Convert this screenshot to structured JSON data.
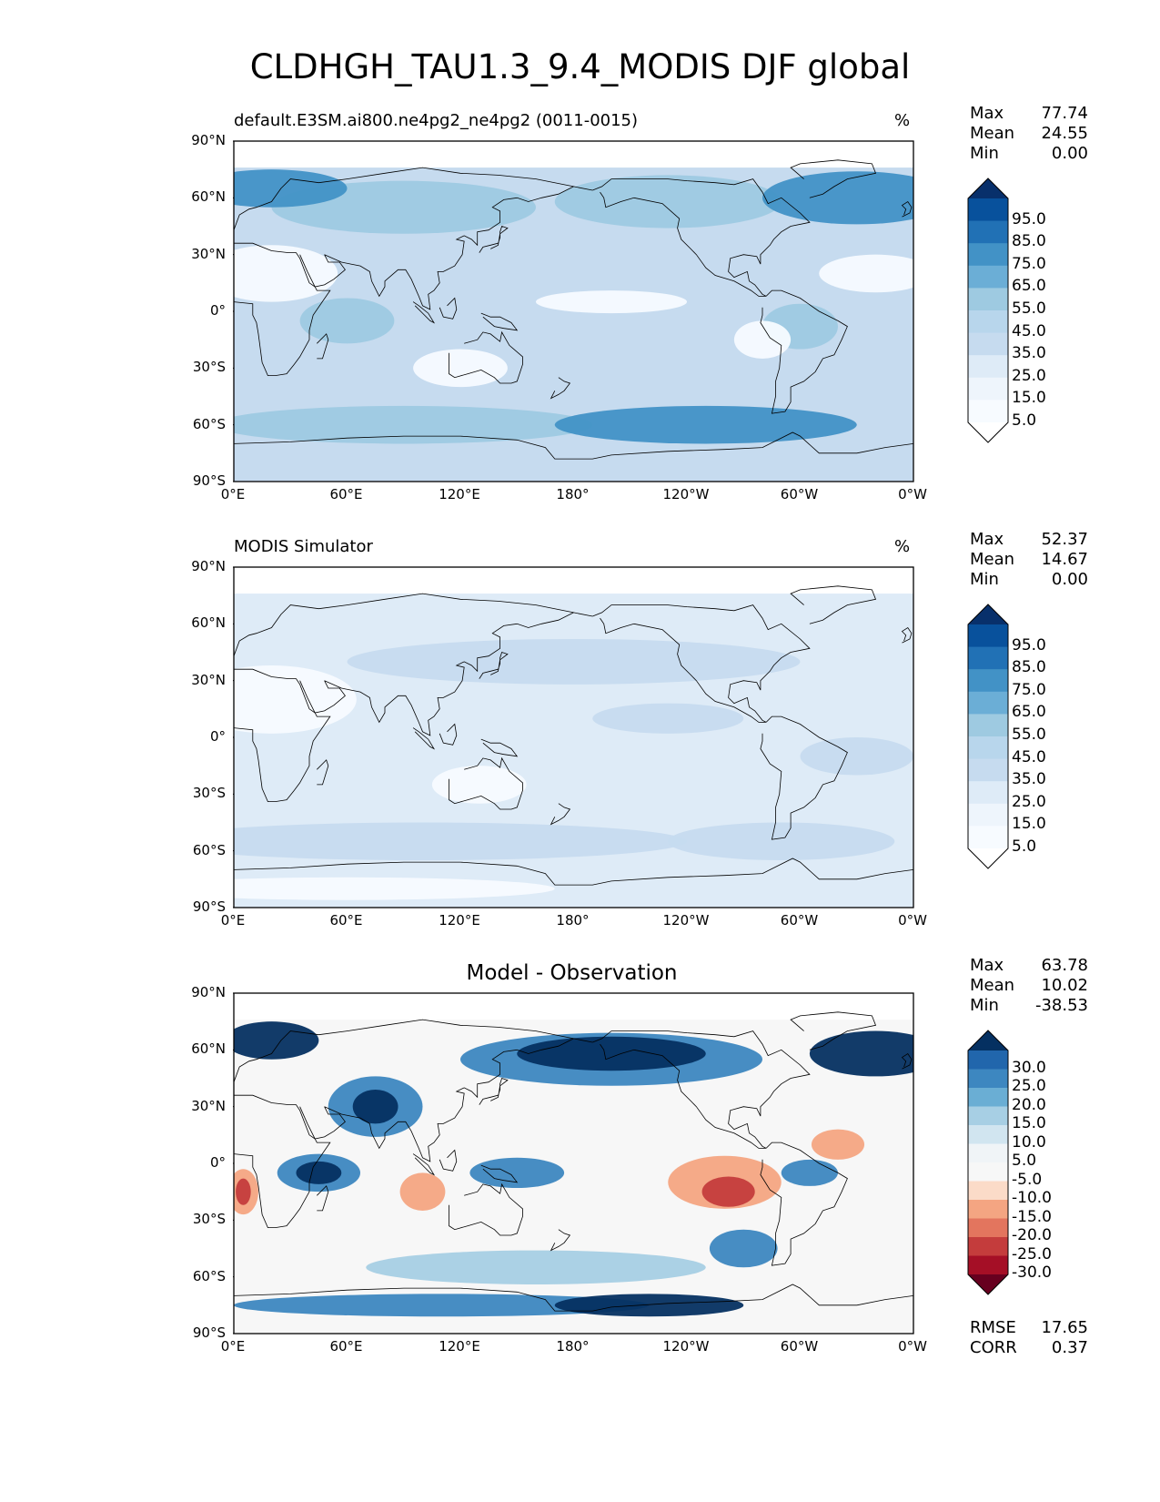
{
  "figure": {
    "title": "CLDHGH_TAU1.3_9.4_MODIS DJF global"
  },
  "axes": {
    "y_ticks": [
      "90°N",
      "60°N",
      "30°N",
      "0°",
      "30°S",
      "60°S",
      "90°S"
    ],
    "x_ticks": [
      "0°E",
      "60°E",
      "120°E",
      "180°",
      "120°W",
      "60°W",
      "0°W"
    ]
  },
  "panels": [
    {
      "left_title": "default.E3SM.ai800.ne4pg2_ne4pg2 (0011-0015)",
      "center_title": "",
      "unit": "%",
      "stats": [
        {
          "label": "Max",
          "value": "77.74"
        },
        {
          "label": "Mean",
          "value": "24.55"
        },
        {
          "label": "Min",
          "value": "0.00"
        }
      ],
      "colorbar": {
        "labels": [
          "95.0",
          "85.0",
          "75.0",
          "65.0",
          "55.0",
          "45.0",
          "35.0",
          "25.0",
          "15.0",
          "5.0"
        ],
        "colors_top_to_bottom": [
          "#08306b",
          "#08519c",
          "#2171b5",
          "#4292c6",
          "#6baed6",
          "#9ecae1",
          "#b8d6ec",
          "#c6dbef",
          "#deebf7",
          "#eef5fc",
          "#f7fbff",
          "#ffffff"
        ]
      },
      "field_colors": {
        "base": "#c6dbef",
        "low": "#f7fbff",
        "mid": "#9ecae1",
        "high": "#4292c6"
      }
    },
    {
      "left_title": "MODIS Simulator",
      "center_title": "",
      "unit": "%",
      "stats": [
        {
          "label": "Max",
          "value": "52.37"
        },
        {
          "label": "Mean",
          "value": "14.67"
        },
        {
          "label": "Min",
          "value": "0.00"
        }
      ],
      "colorbar": {
        "labels": [
          "95.0",
          "85.0",
          "75.0",
          "65.0",
          "55.0",
          "45.0",
          "35.0",
          "25.0",
          "15.0",
          "5.0"
        ],
        "colors_top_to_bottom": [
          "#08306b",
          "#08519c",
          "#2171b5",
          "#4292c6",
          "#6baed6",
          "#9ecae1",
          "#b8d6ec",
          "#c6dbef",
          "#deebf7",
          "#eef5fc",
          "#f7fbff",
          "#ffffff"
        ]
      },
      "field_colors": {
        "base": "#deebf7",
        "low": "#f7fbff",
        "mid": "#c6dbef",
        "high": "#9ecae1"
      }
    },
    {
      "left_title": "",
      "center_title": "Model - Observation",
      "unit": "",
      "stats": [
        {
          "label": "Max",
          "value": "63.78"
        },
        {
          "label": "Mean",
          "value": "10.02"
        },
        {
          "label": "Min",
          "value": "-38.53"
        }
      ],
      "colorbar": {
        "labels": [
          "30.0",
          "25.0",
          "20.0",
          "15.0",
          "10.0",
          "5.0",
          "-5.0",
          "-10.0",
          "-15.0",
          "-20.0",
          "-25.0",
          "-30.0"
        ],
        "colors_top_to_bottom": [
          "#053061",
          "#2166ac",
          "#3d87c0",
          "#6aaed4",
          "#a7cfe4",
          "#d1e5f0",
          "#f0f4f7",
          "#f7f7f7",
          "#fbdbc8",
          "#f4a582",
          "#e3755e",
          "#c43c3c",
          "#a50f26",
          "#67001f"
        ]
      },
      "field_colors": {
        "base": "#f7f7f7",
        "pos1": "#a7cfe4",
        "pos2": "#3d87c0",
        "pos3": "#053061",
        "neg1": "#f4a582",
        "neg2": "#c43c3c"
      }
    }
  ],
  "metrics": [
    {
      "label": "RMSE",
      "value": "17.65"
    },
    {
      "label": "CORR",
      "value": "0.37"
    }
  ],
  "chart_data": [
    {
      "type": "heatmap",
      "title": "default.E3SM.ai800.ne4pg2_ne4pg2 (0011-0015)",
      "units": "%",
      "lon_range": [
        0,
        360
      ],
      "lat_range": [
        -90,
        90
      ],
      "contour_levels": [
        5,
        15,
        25,
        35,
        45,
        55,
        65,
        75,
        85,
        95
      ],
      "stats": {
        "max": 77.74,
        "mean": 24.55,
        "min": 0.0
      }
    },
    {
      "type": "heatmap",
      "title": "MODIS Simulator",
      "units": "%",
      "lon_range": [
        0,
        360
      ],
      "lat_range": [
        -90,
        90
      ],
      "contour_levels": [
        5,
        15,
        25,
        35,
        45,
        55,
        65,
        75,
        85,
        95
      ],
      "stats": {
        "max": 52.37,
        "mean": 14.67,
        "min": 0.0
      }
    },
    {
      "type": "heatmap",
      "title": "Model - Observation",
      "lon_range": [
        0,
        360
      ],
      "lat_range": [
        -90,
        90
      ],
      "contour_levels": [
        -30,
        -25,
        -20,
        -15,
        -10,
        -5,
        5,
        10,
        15,
        20,
        25,
        30
      ],
      "stats": {
        "max": 63.78,
        "mean": 10.02,
        "min": -38.53,
        "rmse": 17.65,
        "corr": 0.37
      }
    }
  ]
}
